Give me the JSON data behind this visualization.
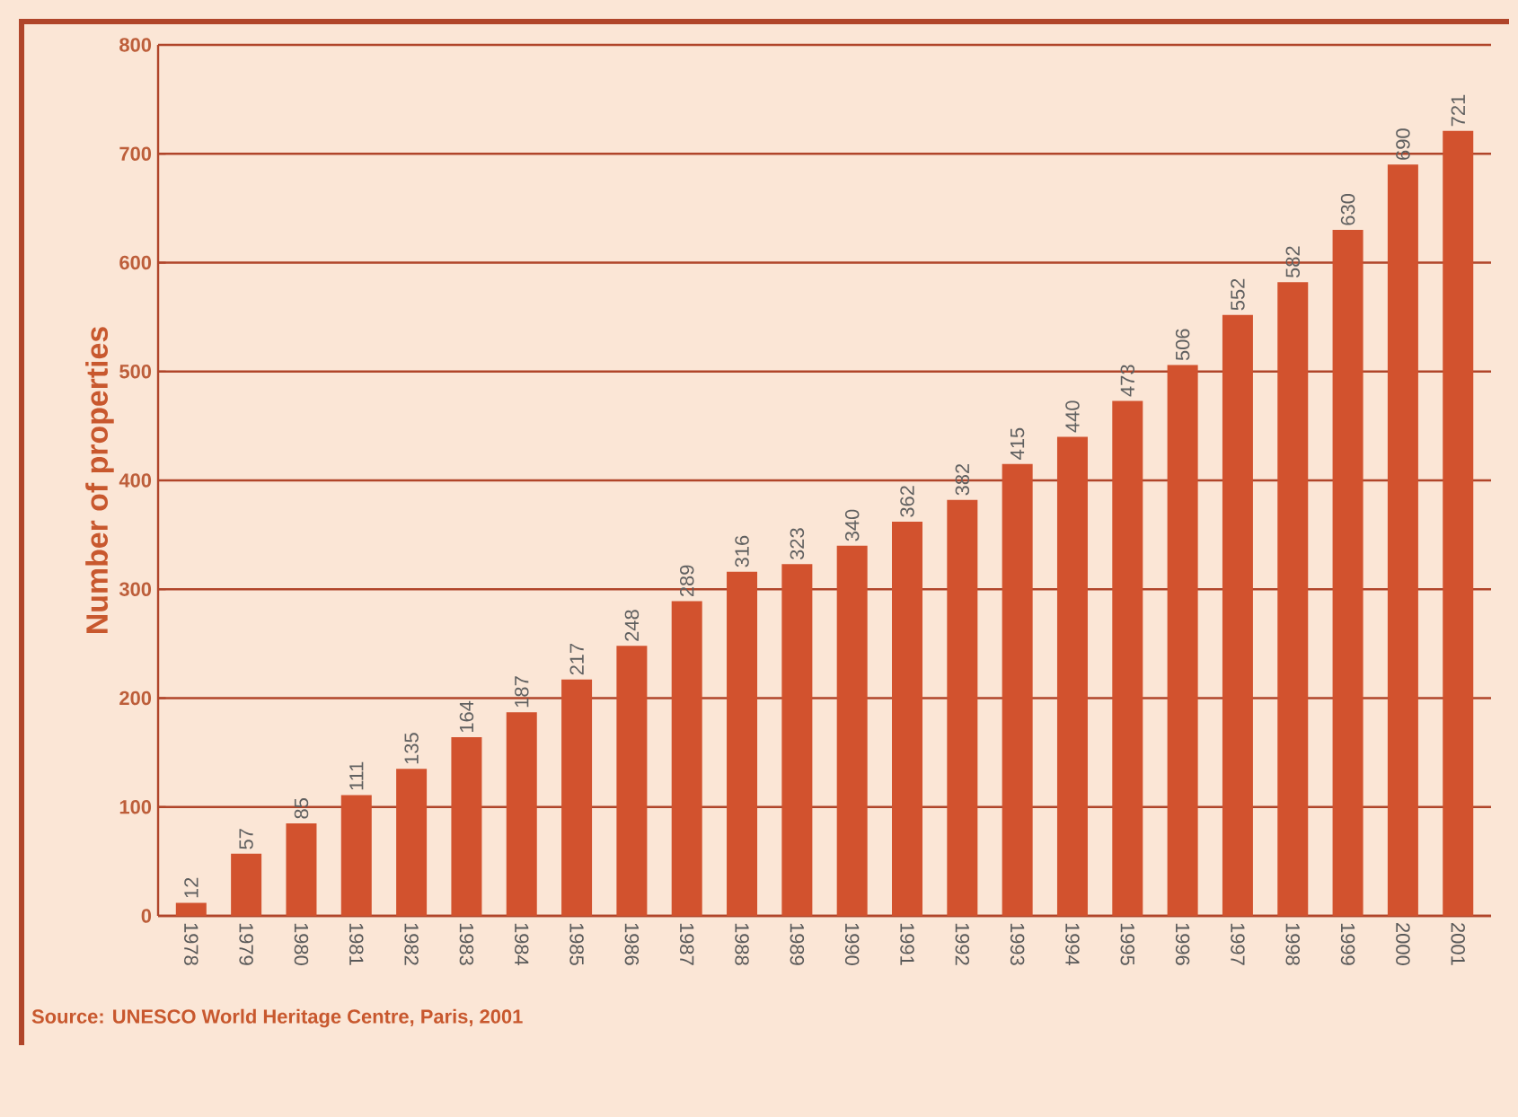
{
  "chart_data": {
    "type": "bar",
    "ylabel": "Number of properties",
    "categories": [
      "1978",
      "1979",
      "1980",
      "1981",
      "1982",
      "1983",
      "1984",
      "1985",
      "1986",
      "1987",
      "1988",
      "1989",
      "1990",
      "1991",
      "1992",
      "1993",
      "1994",
      "1995",
      "1996",
      "1997",
      "1998",
      "1999",
      "2000",
      "2001"
    ],
    "values": [
      12,
      57,
      85,
      111,
      135,
      164,
      187,
      217,
      248,
      289,
      316,
      323,
      340,
      362,
      382,
      415,
      440,
      473,
      506,
      552,
      582,
      630,
      690,
      721
    ],
    "color": "#d2522e",
    "ylim": [
      0,
      800
    ],
    "yticks": [
      0,
      100,
      200,
      300,
      400,
      500,
      600,
      700,
      800
    ],
    "grid": "y",
    "data_labels": true,
    "annotations": [
      "Source: UNESCO World Heritage Centre, Paris, 2001"
    ]
  }
}
